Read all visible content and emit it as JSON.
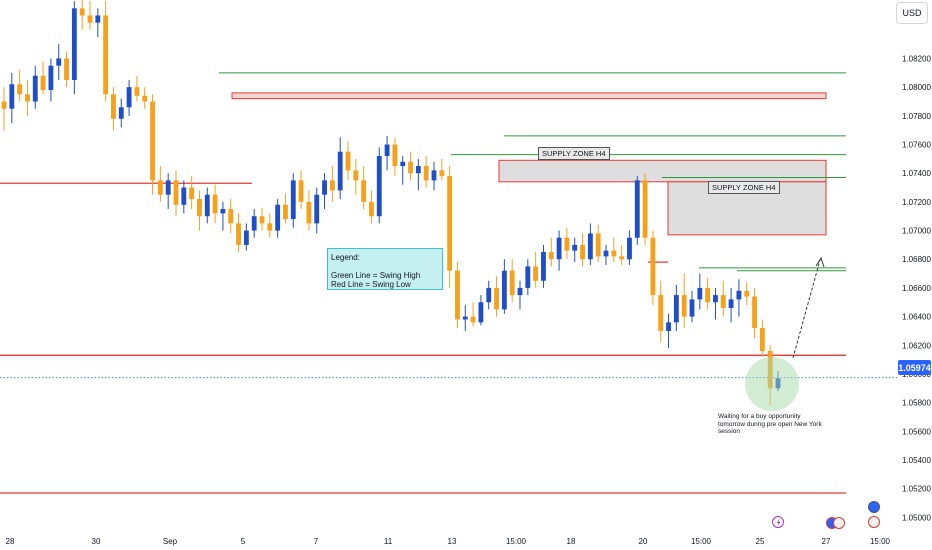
{
  "currency_button": "USD",
  "current_price": "1.05974",
  "colors": {
    "bull": "#1e4ec9",
    "bear": "#f7a11b",
    "swing_high": "#2b9b3b",
    "swing_low": "#e53935",
    "supply_fill": "#dedede",
    "supply_border": "#e53935",
    "price_tag": "#2962ff",
    "legend_bg": "#c6eff2",
    "highlight_circle": "#a6dba8"
  },
  "legend": {
    "title": "Legend:",
    "line1": "Green Line = Swing High",
    "line2": "Red Line = Swing Low"
  },
  "zones": {
    "label1": "SUPPLY ZONE H4",
    "label2": "SUPPLY ZONE H4"
  },
  "annotation": "Waiting for a buy opportunity tomorrow during pre open New York session",
  "chart_data": {
    "type": "candlestick",
    "title": "",
    "xlabel": "",
    "ylabel": "",
    "ylim": [
      1.0487,
      1.0858
    ],
    "y_ticks": [
      "1.08200",
      "1.08000",
      "1.07800",
      "1.07600",
      "1.07400",
      "1.07200",
      "1.07000",
      "1.06800",
      "1.06600",
      "1.06400",
      "1.06200",
      "1.06000",
      "1.05800",
      "1.05600",
      "1.05400",
      "1.05200",
      "1.05000"
    ],
    "x_ticks": [
      "28",
      "30",
      "Sep",
      "5",
      "7",
      "11",
      "13",
      "15:00",
      "18",
      "20",
      "15:00",
      "25",
      "27",
      "15:00"
    ],
    "swing_high_lines": [
      1.081,
      1.0766,
      1.0753,
      1.0737,
      1.0674,
      1.0672
    ],
    "swing_low_lines": [
      1.0733,
      1.0613,
      1.0517,
      1.0678
    ],
    "supply_zones": [
      {
        "label": "",
        "top": 1.0796,
        "bottom": 1.0792
      },
      {
        "label": "SUPPLY ZONE H4",
        "top": 1.0749,
        "bottom": 1.0734
      },
      {
        "label": "SUPPLY ZONE H4",
        "top": 1.0734,
        "bottom": 1.0697
      }
    ],
    "current_price": 1.05974,
    "candles": [
      {
        "o": 1.079,
        "h": 1.08,
        "l": 1.077,
        "c": 1.0785
      },
      {
        "o": 1.0785,
        "h": 1.081,
        "l": 1.0775,
        "c": 1.0802
      },
      {
        "o": 1.0802,
        "h": 1.0812,
        "l": 1.079,
        "c": 1.0795
      },
      {
        "o": 1.0795,
        "h": 1.0805,
        "l": 1.078,
        "c": 1.079
      },
      {
        "o": 1.079,
        "h": 1.0815,
        "l": 1.0785,
        "c": 1.0808
      },
      {
        "o": 1.0808,
        "h": 1.0818,
        "l": 1.0795,
        "c": 1.0798
      },
      {
        "o": 1.0798,
        "h": 1.082,
        "l": 1.079,
        "c": 1.0815
      },
      {
        "o": 1.0815,
        "h": 1.083,
        "l": 1.0805,
        "c": 1.082
      },
      {
        "o": 1.082,
        "h": 1.0825,
        "l": 1.08,
        "c": 1.0805
      },
      {
        "o": 1.0805,
        "h": 1.086,
        "l": 1.0795,
        "c": 1.0855
      },
      {
        "o": 1.0855,
        "h": 1.0865,
        "l": 1.084,
        "c": 1.085
      },
      {
        "o": 1.085,
        "h": 1.086,
        "l": 1.084,
        "c": 1.0845
      },
      {
        "o": 1.0845,
        "h": 1.0855,
        "l": 1.0835,
        "c": 1.085
      },
      {
        "o": 1.085,
        "h": 1.086,
        "l": 1.079,
        "c": 1.0795
      },
      {
        "o": 1.0795,
        "h": 1.08,
        "l": 1.077,
        "c": 1.0778
      },
      {
        "o": 1.0778,
        "h": 1.0792,
        "l": 1.0772,
        "c": 1.0786
      },
      {
        "o": 1.0786,
        "h": 1.0805,
        "l": 1.078,
        "c": 1.08
      },
      {
        "o": 1.08,
        "h": 1.0808,
        "l": 1.079,
        "c": 1.0794
      },
      {
        "o": 1.0794,
        "h": 1.08,
        "l": 1.0785,
        "c": 1.079
      },
      {
        "o": 1.079,
        "h": 1.0795,
        "l": 1.0725,
        "c": 1.0735
      },
      {
        "o": 1.0735,
        "h": 1.0745,
        "l": 1.072,
        "c": 1.0725
      },
      {
        "o": 1.0725,
        "h": 1.074,
        "l": 1.0715,
        "c": 1.0735
      },
      {
        "o": 1.0735,
        "h": 1.0742,
        "l": 1.071,
        "c": 1.0718
      },
      {
        "o": 1.0718,
        "h": 1.0735,
        "l": 1.0712,
        "c": 1.073
      },
      {
        "o": 1.073,
        "h": 1.0738,
        "l": 1.0715,
        "c": 1.0722
      },
      {
        "o": 1.0722,
        "h": 1.0728,
        "l": 1.07,
        "c": 1.071
      },
      {
        "o": 1.071,
        "h": 1.073,
        "l": 1.0705,
        "c": 1.0725
      },
      {
        "o": 1.0725,
        "h": 1.0732,
        "l": 1.0705,
        "c": 1.0712
      },
      {
        "o": 1.0712,
        "h": 1.072,
        "l": 1.07,
        "c": 1.0715
      },
      {
        "o": 1.0715,
        "h": 1.0722,
        "l": 1.0698,
        "c": 1.0705
      },
      {
        "o": 1.0705,
        "h": 1.0712,
        "l": 1.0685,
        "c": 1.069
      },
      {
        "o": 1.069,
        "h": 1.0705,
        "l": 1.0686,
        "c": 1.07
      },
      {
        "o": 1.07,
        "h": 1.0715,
        "l": 1.0695,
        "c": 1.071
      },
      {
        "o": 1.071,
        "h": 1.0716,
        "l": 1.07,
        "c": 1.0705
      },
      {
        "o": 1.0705,
        "h": 1.0712,
        "l": 1.0695,
        "c": 1.07
      },
      {
        "o": 1.07,
        "h": 1.0722,
        "l": 1.0695,
        "c": 1.0718
      },
      {
        "o": 1.0718,
        "h": 1.0726,
        "l": 1.0705,
        "c": 1.0708
      },
      {
        "o": 1.0708,
        "h": 1.074,
        "l": 1.0702,
        "c": 1.0735
      },
      {
        "o": 1.0735,
        "h": 1.0742,
        "l": 1.0715,
        "c": 1.072
      },
      {
        "o": 1.072,
        "h": 1.0728,
        "l": 1.07,
        "c": 1.0705
      },
      {
        "o": 1.0705,
        "h": 1.073,
        "l": 1.0698,
        "c": 1.0725
      },
      {
        "o": 1.0725,
        "h": 1.074,
        "l": 1.0715,
        "c": 1.0735
      },
      {
        "o": 1.0735,
        "h": 1.0745,
        "l": 1.072,
        "c": 1.0728
      },
      {
        "o": 1.0728,
        "h": 1.0765,
        "l": 1.0722,
        "c": 1.0755
      },
      {
        "o": 1.0755,
        "h": 1.0762,
        "l": 1.0735,
        "c": 1.0742
      },
      {
        "o": 1.0742,
        "h": 1.075,
        "l": 1.0725,
        "c": 1.0735
      },
      {
        "o": 1.0735,
        "h": 1.0745,
        "l": 1.0715,
        "c": 1.072
      },
      {
        "o": 1.072,
        "h": 1.0728,
        "l": 1.0705,
        "c": 1.071
      },
      {
        "o": 1.071,
        "h": 1.0758,
        "l": 1.0705,
        "c": 1.0752
      },
      {
        "o": 1.0752,
        "h": 1.0766,
        "l": 1.0742,
        "c": 1.076
      },
      {
        "o": 1.076,
        "h": 1.0765,
        "l": 1.0738,
        "c": 1.0745
      },
      {
        "o": 1.0745,
        "h": 1.0752,
        "l": 1.0732,
        "c": 1.0748
      },
      {
        "o": 1.0748,
        "h": 1.0755,
        "l": 1.0735,
        "c": 1.074
      },
      {
        "o": 1.074,
        "h": 1.075,
        "l": 1.0728,
        "c": 1.0745
      },
      {
        "o": 1.0745,
        "h": 1.0752,
        "l": 1.073,
        "c": 1.0735
      },
      {
        "o": 1.0735,
        "h": 1.0748,
        "l": 1.0728,
        "c": 1.0742
      },
      {
        "o": 1.0742,
        "h": 1.075,
        "l": 1.0735,
        "c": 1.0738
      },
      {
        "o": 1.0738,
        "h": 1.0745,
        "l": 1.066,
        "c": 1.0672
      },
      {
        "o": 1.0672,
        "h": 1.0678,
        "l": 1.0632,
        "c": 1.0638
      },
      {
        "o": 1.0638,
        "h": 1.0648,
        "l": 1.063,
        "c": 1.064
      },
      {
        "o": 1.064,
        "h": 1.065,
        "l": 1.0633,
        "c": 1.0636
      },
      {
        "o": 1.0636,
        "h": 1.0655,
        "l": 1.0634,
        "c": 1.065
      },
      {
        "o": 1.065,
        "h": 1.0665,
        "l": 1.0645,
        "c": 1.066
      },
      {
        "o": 1.066,
        "h": 1.0668,
        "l": 1.064,
        "c": 1.0645
      },
      {
        "o": 1.0645,
        "h": 1.068,
        "l": 1.0642,
        "c": 1.0672
      },
      {
        "o": 1.0672,
        "h": 1.068,
        "l": 1.065,
        "c": 1.0655
      },
      {
        "o": 1.0655,
        "h": 1.0665,
        "l": 1.0645,
        "c": 1.066
      },
      {
        "o": 1.066,
        "h": 1.068,
        "l": 1.0655,
        "c": 1.0675
      },
      {
        "o": 1.0675,
        "h": 1.0685,
        "l": 1.066,
        "c": 1.0665
      },
      {
        "o": 1.0665,
        "h": 1.069,
        "l": 1.066,
        "c": 1.0685
      },
      {
        "o": 1.0685,
        "h": 1.0695,
        "l": 1.0675,
        "c": 1.068
      },
      {
        "o": 1.068,
        "h": 1.07,
        "l": 1.0672,
        "c": 1.0695
      },
      {
        "o": 1.0695,
        "h": 1.0702,
        "l": 1.068,
        "c": 1.0686
      },
      {
        "o": 1.0686,
        "h": 1.0695,
        "l": 1.0678,
        "c": 1.069
      },
      {
        "o": 1.069,
        "h": 1.0698,
        "l": 1.0675,
        "c": 1.068
      },
      {
        "o": 1.068,
        "h": 1.0705,
        "l": 1.0676,
        "c": 1.0698
      },
      {
        "o": 1.0698,
        "h": 1.0704,
        "l": 1.0678,
        "c": 1.0682
      },
      {
        "o": 1.0682,
        "h": 1.069,
        "l": 1.0676,
        "c": 1.0686
      },
      {
        "o": 1.0686,
        "h": 1.0695,
        "l": 1.0678,
        "c": 1.0682
      },
      {
        "o": 1.0682,
        "h": 1.069,
        "l": 1.0676,
        "c": 1.068
      },
      {
        "o": 1.068,
        "h": 1.07,
        "l": 1.0676,
        "c": 1.0695
      },
      {
        "o": 1.0695,
        "h": 1.0738,
        "l": 1.069,
        "c": 1.0735
      },
      {
        "o": 1.0735,
        "h": 1.074,
        "l": 1.069,
        "c": 1.0695
      },
      {
        "o": 1.0695,
        "h": 1.07,
        "l": 1.0648,
        "c": 1.0655
      },
      {
        "o": 1.0655,
        "h": 1.0665,
        "l": 1.0622,
        "c": 1.063
      },
      {
        "o": 1.063,
        "h": 1.0642,
        "l": 1.0618,
        "c": 1.0636
      },
      {
        "o": 1.0636,
        "h": 1.0662,
        "l": 1.063,
        "c": 1.0655
      },
      {
        "o": 1.0655,
        "h": 1.067,
        "l": 1.0632,
        "c": 1.064
      },
      {
        "o": 1.064,
        "h": 1.0658,
        "l": 1.0636,
        "c": 1.0652
      },
      {
        "o": 1.0652,
        "h": 1.067,
        "l": 1.0645,
        "c": 1.066
      },
      {
        "o": 1.066,
        "h": 1.0667,
        "l": 1.0645,
        "c": 1.065
      },
      {
        "o": 1.065,
        "h": 1.066,
        "l": 1.0638,
        "c": 1.0655
      },
      {
        "o": 1.0655,
        "h": 1.0665,
        "l": 1.064,
        "c": 1.0646
      },
      {
        "o": 1.0646,
        "h": 1.066,
        "l": 1.0636,
        "c": 1.0652
      },
      {
        "o": 1.0652,
        "h": 1.0666,
        "l": 1.064,
        "c": 1.0658
      },
      {
        "o": 1.0658,
        "h": 1.0664,
        "l": 1.0648,
        "c": 1.0654
      },
      {
        "o": 1.0654,
        "h": 1.066,
        "l": 1.0625,
        "c": 1.0632
      },
      {
        "o": 1.0632,
        "h": 1.0638,
        "l": 1.0612,
        "c": 1.0616
      },
      {
        "o": 1.0616,
        "h": 1.062,
        "l": 1.0578,
        "c": 1.059
      },
      {
        "o": 1.059,
        "h": 1.0602,
        "l": 1.0588,
        "c": 1.0597
      }
    ]
  }
}
